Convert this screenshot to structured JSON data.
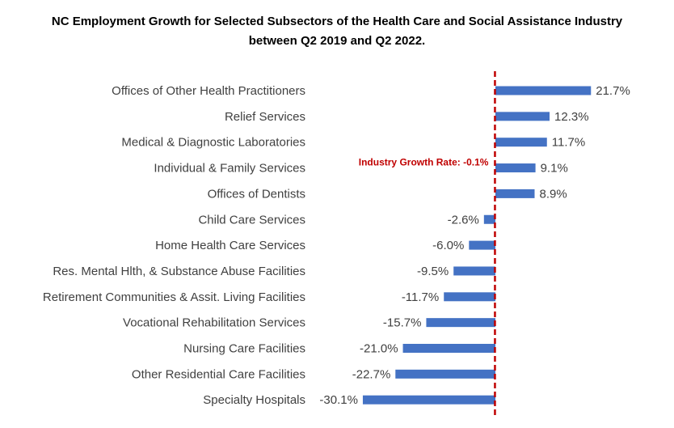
{
  "chart_data": {
    "type": "bar",
    "orientation": "horizontal",
    "title_line_1": "NC Employment Growth for Selected Subsectors of the Health Care and Social Assistance Industry",
    "title_line_2": "between Q2 2019 and Q2 2022.",
    "categories": [
      "Offices of Other Health Practitioners",
      "Relief Services",
      "Medical & Diagnostic Laboratories",
      "Individual & Family Services",
      "Offices of Dentists",
      "Child Care Services",
      "Home Health Care Services",
      "Res. Mental Hlth, & Substance Abuse Facilities",
      "Retirement Communities & Assit. Living Facilities",
      "Vocational Rehabilitation Services",
      "Nursing Care Facilities",
      "Other Residential Care Facilities",
      "Specialty Hospitals"
    ],
    "values": [
      21.7,
      12.3,
      11.7,
      9.1,
      8.9,
      -2.6,
      -6.0,
      -9.5,
      -11.7,
      -15.7,
      -21.0,
      -22.7,
      -30.1
    ],
    "data_labels": [
      "21.7%",
      "12.3%",
      "11.7%",
      "9.1%",
      "8.9%",
      "-2.6%",
      "-6.0%",
      "-9.5%",
      "-11.7%",
      "-15.7%",
      "-21.0%",
      "-22.7%",
      "-30.1%"
    ],
    "xlim": [
      -32,
      26
    ],
    "reference_line": {
      "value": -0.1,
      "label": "Industry Growth Rate: -0.1%",
      "color": "#c00000",
      "style": "dashed"
    },
    "bar_color": "#4472c4",
    "grid": false,
    "legend": "none"
  }
}
